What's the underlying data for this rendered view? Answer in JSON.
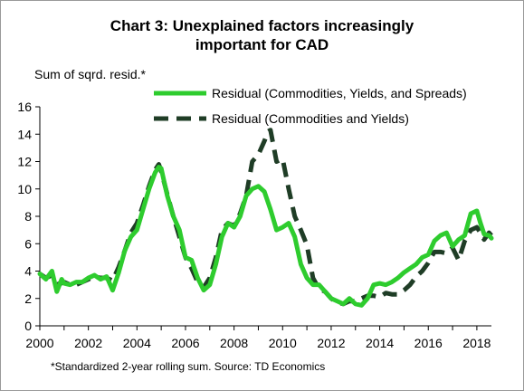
{
  "title_line1": "Chart 3: Unexplained factors increasingly",
  "title_line2": "important for CAD",
  "footnote": "*Standardized 2-year rolling sum. Source: TD Economics",
  "chart_data": {
    "type": "line",
    "ylabel": "Sum of sqrd. resid.*",
    "xlabel": "",
    "xlim": [
      2000,
      2018.6
    ],
    "ylim": [
      0,
      16
    ],
    "xticks": [
      2000,
      2002,
      2004,
      2006,
      2008,
      2010,
      2012,
      2014,
      2016,
      2018
    ],
    "yticks": [
      0,
      2,
      4,
      6,
      8,
      10,
      12,
      14,
      16
    ],
    "legend_position": "top-right",
    "grid": false,
    "series": [
      {
        "name": "Residual (Commodities, Yields, and Spreads)",
        "color": "#2ecc2e",
        "style": "solid",
        "x": [
          2000.0,
          2000.25,
          2000.5,
          2000.7,
          2000.9,
          2001.0,
          2001.25,
          2001.5,
          2001.75,
          2002.0,
          2002.25,
          2002.5,
          2002.75,
          2003.0,
          2003.25,
          2003.5,
          2003.75,
          2004.0,
          2004.25,
          2004.5,
          2004.75,
          2004.9,
          2005.0,
          2005.25,
          2005.5,
          2005.75,
          2006.0,
          2006.25,
          2006.5,
          2006.75,
          2007.0,
          2007.25,
          2007.5,
          2007.75,
          2008.0,
          2008.25,
          2008.5,
          2008.75,
          2009.0,
          2009.25,
          2009.5,
          2009.75,
          2010.0,
          2010.25,
          2010.5,
          2010.75,
          2011.0,
          2011.25,
          2011.5,
          2011.75,
          2012.0,
          2012.25,
          2012.5,
          2012.75,
          2013.0,
          2013.25,
          2013.5,
          2013.75,
          2014.0,
          2014.25,
          2014.5,
          2014.75,
          2015.0,
          2015.25,
          2015.5,
          2015.75,
          2016.0,
          2016.25,
          2016.5,
          2016.75,
          2017.0,
          2017.25,
          2017.5,
          2017.75,
          2018.0,
          2018.15,
          2018.3,
          2018.5,
          2018.6
        ],
        "values": [
          3.8,
          3.4,
          4.0,
          2.5,
          3.4,
          3.1,
          3.0,
          3.2,
          3.2,
          3.5,
          3.7,
          3.4,
          3.6,
          2.6,
          3.9,
          5.5,
          6.5,
          7.0,
          8.5,
          10.0,
          11.2,
          11.6,
          11.5,
          9.5,
          8.0,
          7.0,
          5.0,
          4.8,
          3.5,
          2.6,
          3.0,
          4.5,
          6.5,
          7.5,
          7.2,
          8.0,
          9.5,
          10.0,
          10.2,
          9.8,
          8.5,
          7.0,
          7.2,
          7.5,
          6.5,
          4.5,
          3.5,
          3.0,
          3.0,
          2.5,
          2.0,
          1.8,
          1.6,
          2.0,
          1.6,
          1.5,
          2.0,
          3.0,
          3.1,
          3.0,
          3.2,
          3.5,
          3.9,
          4.2,
          4.5,
          5.0,
          5.2,
          6.2,
          6.6,
          6.8,
          5.8,
          6.3,
          6.6,
          8.2,
          8.4,
          7.5,
          6.7,
          6.6,
          6.4
        ]
      },
      {
        "name": "Residual (Commodities and Yields)",
        "color": "#1f3d26",
        "style": "dashed",
        "x": [
          2000.0,
          2000.25,
          2000.5,
          2000.75,
          2001.0,
          2001.25,
          2001.5,
          2001.75,
          2002.0,
          2002.25,
          2002.5,
          2002.75,
          2003.0,
          2003.25,
          2003.5,
          2003.75,
          2004.0,
          2004.25,
          2004.5,
          2004.75,
          2004.9,
          2005.0,
          2005.25,
          2005.5,
          2005.75,
          2006.0,
          2006.25,
          2006.5,
          2006.75,
          2007.0,
          2007.25,
          2007.5,
          2007.75,
          2008.0,
          2008.25,
          2008.5,
          2008.75,
          2009.0,
          2009.25,
          2009.4,
          2009.5,
          2009.75,
          2010.0,
          2010.25,
          2010.5,
          2010.75,
          2011.0,
          2011.25,
          2011.5,
          2011.75,
          2012.0,
          2012.25,
          2012.5,
          2012.75,
          2013.0,
          2013.25,
          2013.5,
          2013.75,
          2014.0,
          2014.25,
          2014.5,
          2014.75,
          2015.0,
          2015.25,
          2015.5,
          2015.75,
          2016.0,
          2016.25,
          2016.5,
          2016.75,
          2017.0,
          2017.25,
          2017.5,
          2017.75,
          2018.0,
          2018.15,
          2018.3,
          2018.5,
          2018.6
        ],
        "values": [
          3.8,
          3.5,
          3.7,
          3.0,
          3.2,
          3.0,
          3.0,
          3.2,
          3.4,
          3.6,
          3.5,
          3.5,
          3.3,
          4.3,
          5.5,
          6.8,
          7.5,
          8.8,
          10.2,
          11.4,
          11.8,
          11.3,
          9.6,
          8.0,
          6.5,
          5.0,
          4.2,
          3.2,
          2.8,
          3.5,
          5.0,
          7.0,
          7.5,
          7.3,
          8.2,
          9.5,
          12.0,
          12.5,
          13.5,
          14.2,
          14.3,
          12.0,
          12.2,
          10.0,
          8.0,
          7.0,
          5.9,
          3.5,
          2.7,
          2.5,
          2.0,
          1.7,
          1.6,
          1.8,
          1.8,
          2.0,
          2.2,
          2.2,
          2.1,
          2.4,
          2.3,
          2.3,
          2.6,
          3.0,
          3.6,
          4.0,
          4.6,
          5.4,
          5.4,
          5.3,
          5.7,
          4.8,
          6.2,
          7.0,
          7.2,
          6.8,
          6.3,
          6.8,
          6.6
        ]
      }
    ]
  }
}
